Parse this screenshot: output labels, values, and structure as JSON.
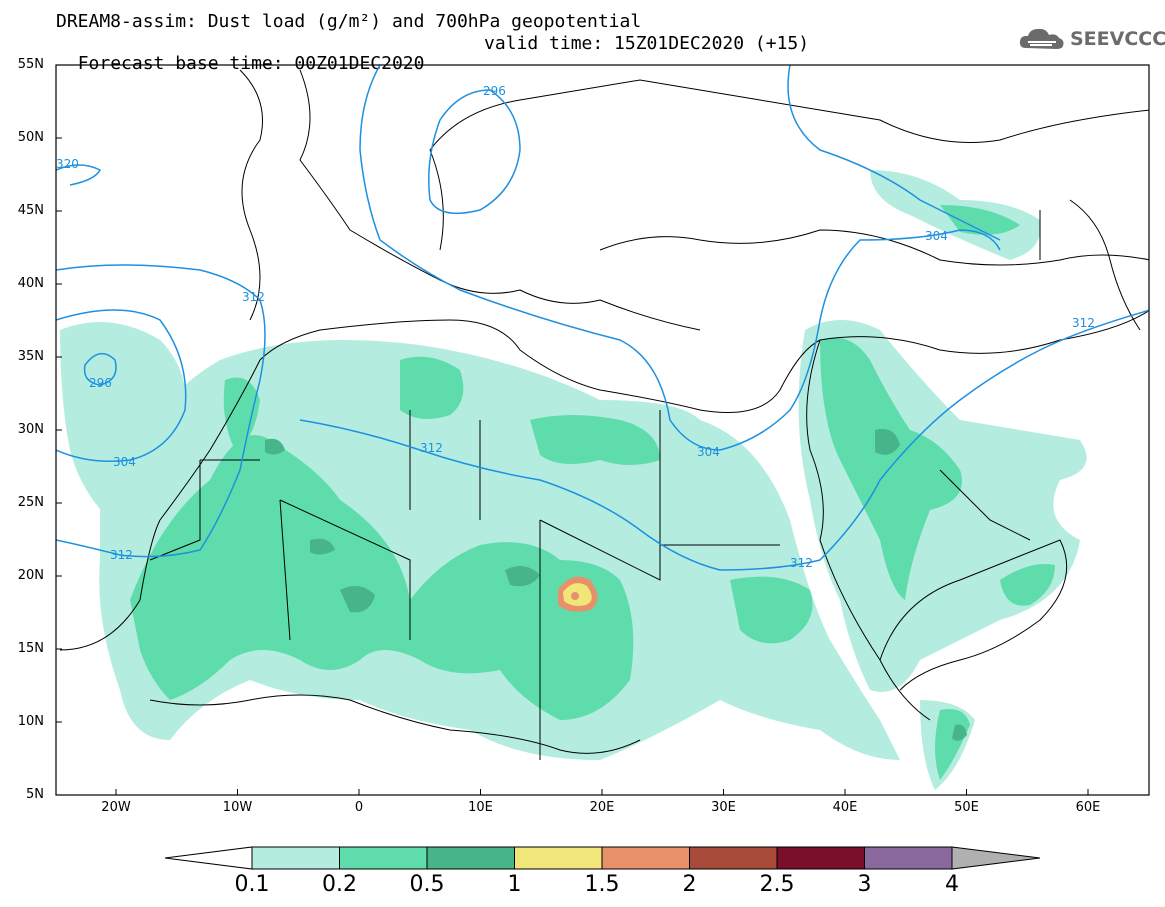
{
  "title_line1": "DREAM8-assim: Dust load (g/m²) and 700hPa geopotential",
  "title_forecast": "Forecast base time: 00Z01DEC2020",
  "title_valid": "valid time: 15Z01DEC2020 (+15)",
  "logo": {
    "text": "SEEVCCC",
    "icon": "cloud-icon"
  },
  "lat_labels": [
    "55N",
    "50N",
    "45N",
    "40N",
    "35N",
    "30N",
    "25N",
    "20N",
    "15N",
    "10N",
    "5N"
  ],
  "lon_labels": [
    "20W",
    "10W",
    "0",
    "10E",
    "20E",
    "30E",
    "40E",
    "50E",
    "60E"
  ],
  "contour_labels": [
    "296",
    "320",
    "304",
    "312",
    "296",
    "312",
    "304",
    "312",
    "304",
    "312",
    "312",
    "304"
  ],
  "colorbar": {
    "labels": [
      "0.1",
      "0.2",
      "0.5",
      "1",
      "1.5",
      "2",
      "2.5",
      "3",
      "4"
    ],
    "colors": [
      "#b4ede0",
      "#5fdcab",
      "#48b48a",
      "#f0e67a",
      "#e8906a",
      "#a84a3a",
      "#7a0f2a",
      "#8a6a9e",
      "#b0b0b0"
    ]
  },
  "colors": {
    "contour": "#1e90e0",
    "border": "#000000"
  }
}
